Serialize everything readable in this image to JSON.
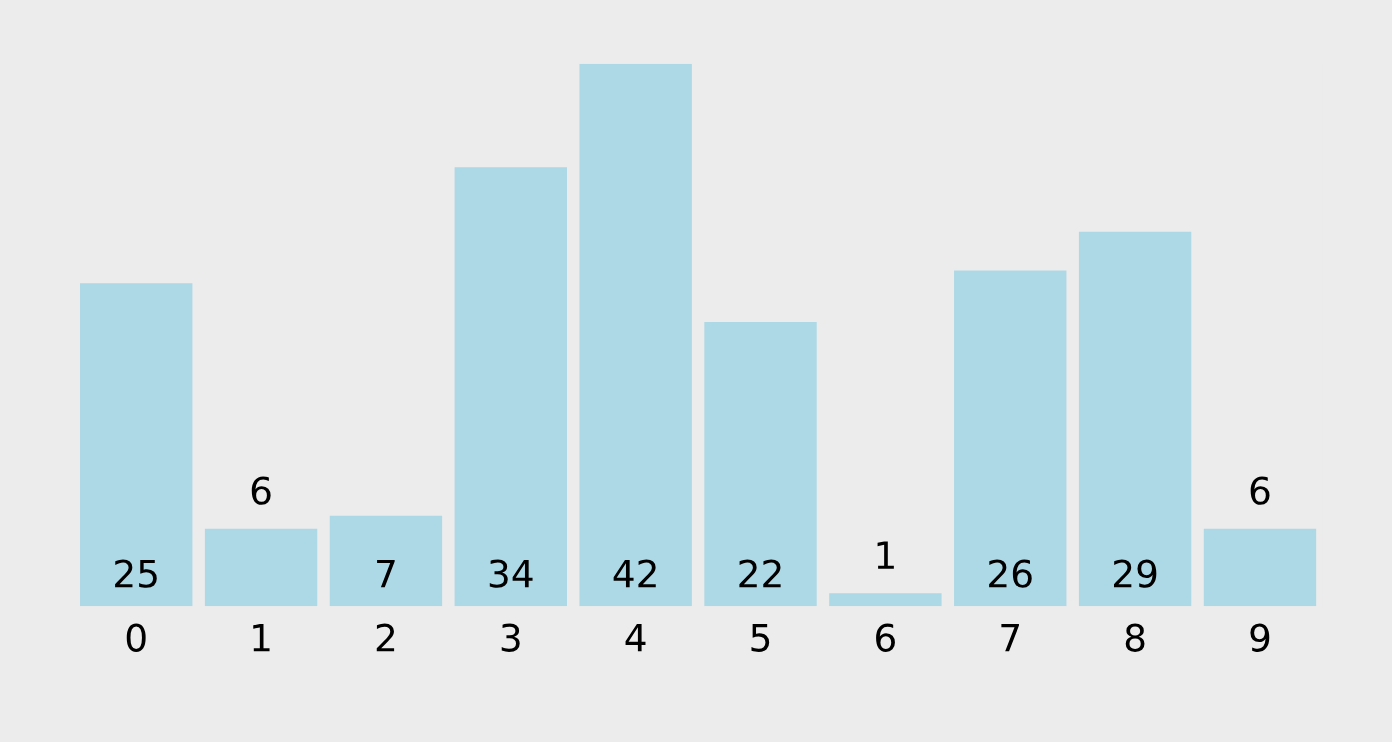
{
  "chart_data": {
    "type": "bar",
    "categories": [
      "0",
      "1",
      "2",
      "3",
      "4",
      "5",
      "6",
      "7",
      "8",
      "9"
    ],
    "values": [
      25,
      6,
      7,
      34,
      42,
      22,
      1,
      26,
      29,
      6
    ],
    "color": "#add8e6",
    "data_labels": true
  }
}
